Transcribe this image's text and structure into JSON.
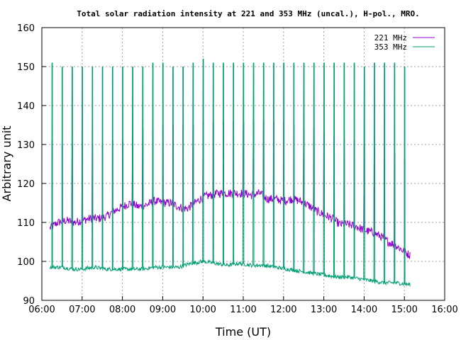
{
  "chart_data": {
    "type": "line",
    "title": "Total solar radiation intensity at 221 and 353 MHz (uncal.), H-pol., MRO.",
    "xlabel": "Time (UT)",
    "ylabel": "Arbitrary unit",
    "xlim": [
      6.0,
      16.0
    ],
    "ylim": [
      90,
      160
    ],
    "x_ticks": [
      "06:00",
      "07:00",
      "08:00",
      "09:00",
      "10:00",
      "11:00",
      "12:00",
      "13:00",
      "14:00",
      "15:00",
      "16:00"
    ],
    "y_ticks": [
      "90",
      "100",
      "110",
      "120",
      "130",
      "140",
      "150",
      "160"
    ],
    "grid": true,
    "legend_position": "top-right",
    "series": [
      {
        "name": "221 MHz",
        "color": "#9400d3",
        "baseline": [
          [
            6.2,
            108.5
          ],
          [
            6.4,
            110
          ],
          [
            6.6,
            110.5
          ],
          [
            6.8,
            110
          ],
          [
            7.0,
            110.5
          ],
          [
            7.2,
            111
          ],
          [
            7.4,
            111
          ],
          [
            7.6,
            111.5
          ],
          [
            7.8,
            113
          ],
          [
            8.0,
            114
          ],
          [
            8.2,
            115
          ],
          [
            8.4,
            114
          ],
          [
            8.6,
            114.5
          ],
          [
            8.8,
            115.5
          ],
          [
            9.0,
            115
          ],
          [
            9.2,
            115
          ],
          [
            9.4,
            114
          ],
          [
            9.6,
            113.5
          ],
          [
            9.8,
            115
          ],
          [
            10.0,
            116.5
          ],
          [
            10.2,
            117
          ],
          [
            10.4,
            117.5
          ],
          [
            10.6,
            117.5
          ],
          [
            10.8,
            117.5
          ],
          [
            11.0,
            117.5
          ],
          [
            11.2,
            117
          ],
          [
            11.4,
            117.5
          ],
          [
            11.6,
            116
          ],
          [
            11.8,
            116
          ],
          [
            12.0,
            115.5
          ],
          [
            12.2,
            116
          ],
          [
            12.4,
            115.5
          ],
          [
            12.6,
            114.5
          ],
          [
            12.8,
            113
          ],
          [
            13.0,
            112
          ],
          [
            13.2,
            111
          ],
          [
            13.4,
            109.5
          ],
          [
            13.6,
            109.5
          ],
          [
            13.8,
            109
          ],
          [
            14.0,
            108
          ],
          [
            14.2,
            107.5
          ],
          [
            14.4,
            106.5
          ],
          [
            14.6,
            105
          ],
          [
            14.8,
            104
          ],
          [
            15.0,
            102.5
          ],
          [
            15.15,
            101.5
          ]
        ],
        "spikes": [
          [
            6.25,
            131
          ],
          [
            6.5,
            130
          ],
          [
            6.75,
            130
          ],
          [
            7.0,
            130
          ],
          [
            7.25,
            130
          ],
          [
            7.5,
            130
          ],
          [
            7.75,
            131
          ],
          [
            8.0,
            131
          ],
          [
            8.25,
            133
          ],
          [
            8.5,
            134
          ],
          [
            8.75,
            134
          ],
          [
            9.0,
            135
          ],
          [
            9.25,
            135
          ],
          [
            9.5,
            135
          ],
          [
            9.75,
            135
          ],
          [
            10.0,
            136
          ],
          [
            10.25,
            136
          ],
          [
            10.5,
            136
          ],
          [
            10.75,
            136
          ],
          [
            11.0,
            136
          ],
          [
            11.25,
            136
          ],
          [
            11.5,
            136
          ],
          [
            11.75,
            136
          ],
          [
            12.0,
            136
          ],
          [
            12.25,
            135
          ],
          [
            12.5,
            134
          ],
          [
            12.75,
            134
          ],
          [
            13.0,
            133
          ],
          [
            13.25,
            132
          ],
          [
            13.5,
            131
          ],
          [
            13.75,
            131
          ],
          [
            14.0,
            130
          ],
          [
            14.25,
            129
          ],
          [
            14.5,
            129
          ],
          [
            14.75,
            128
          ],
          [
            15.0,
            126
          ]
        ]
      },
      {
        "name": "353 MHz",
        "color": "#009e73",
        "baseline": [
          [
            6.2,
            98.5
          ],
          [
            6.5,
            98.5
          ],
          [
            6.8,
            98
          ],
          [
            7.0,
            98
          ],
          [
            7.3,
            98.5
          ],
          [
            7.6,
            98
          ],
          [
            7.9,
            98
          ],
          [
            8.2,
            98
          ],
          [
            8.5,
            98
          ],
          [
            8.8,
            98.5
          ],
          [
            9.1,
            98.5
          ],
          [
            9.4,
            98.5
          ],
          [
            9.7,
            99.5
          ],
          [
            10.0,
            100
          ],
          [
            10.3,
            99.5
          ],
          [
            10.6,
            99
          ],
          [
            10.9,
            99.5
          ],
          [
            11.2,
            99
          ],
          [
            11.5,
            99
          ],
          [
            11.8,
            98.5
          ],
          [
            12.1,
            98
          ],
          [
            12.4,
            97.5
          ],
          [
            12.7,
            97
          ],
          [
            13.0,
            96.5
          ],
          [
            13.3,
            96
          ],
          [
            13.6,
            96
          ],
          [
            13.9,
            95.5
          ],
          [
            14.2,
            95
          ],
          [
            14.5,
            94.5
          ],
          [
            14.8,
            94.5
          ],
          [
            15.15,
            94
          ]
        ],
        "spikes": [
          [
            6.25,
            151
          ],
          [
            6.5,
            150
          ],
          [
            6.75,
            150
          ],
          [
            7.0,
            150
          ],
          [
            7.25,
            150
          ],
          [
            7.5,
            150
          ],
          [
            7.75,
            150
          ],
          [
            8.0,
            150
          ],
          [
            8.25,
            150
          ],
          [
            8.5,
            150
          ],
          [
            8.75,
            151
          ],
          [
            9.0,
            151
          ],
          [
            9.25,
            150
          ],
          [
            9.5,
            150
          ],
          [
            9.75,
            151
          ],
          [
            10.0,
            152
          ],
          [
            10.25,
            151
          ],
          [
            10.5,
            151
          ],
          [
            10.75,
            151
          ],
          [
            11.0,
            151
          ],
          [
            11.25,
            151
          ],
          [
            11.5,
            151
          ],
          [
            11.75,
            151
          ],
          [
            12.0,
            151
          ],
          [
            12.25,
            151
          ],
          [
            12.5,
            151
          ],
          [
            12.75,
            151
          ],
          [
            13.0,
            151
          ],
          [
            13.25,
            151
          ],
          [
            13.5,
            151
          ],
          [
            13.75,
            151
          ],
          [
            14.0,
            150
          ],
          [
            14.25,
            151
          ],
          [
            14.5,
            151
          ],
          [
            14.75,
            151
          ],
          [
            15.0,
            150
          ]
        ]
      }
    ]
  }
}
